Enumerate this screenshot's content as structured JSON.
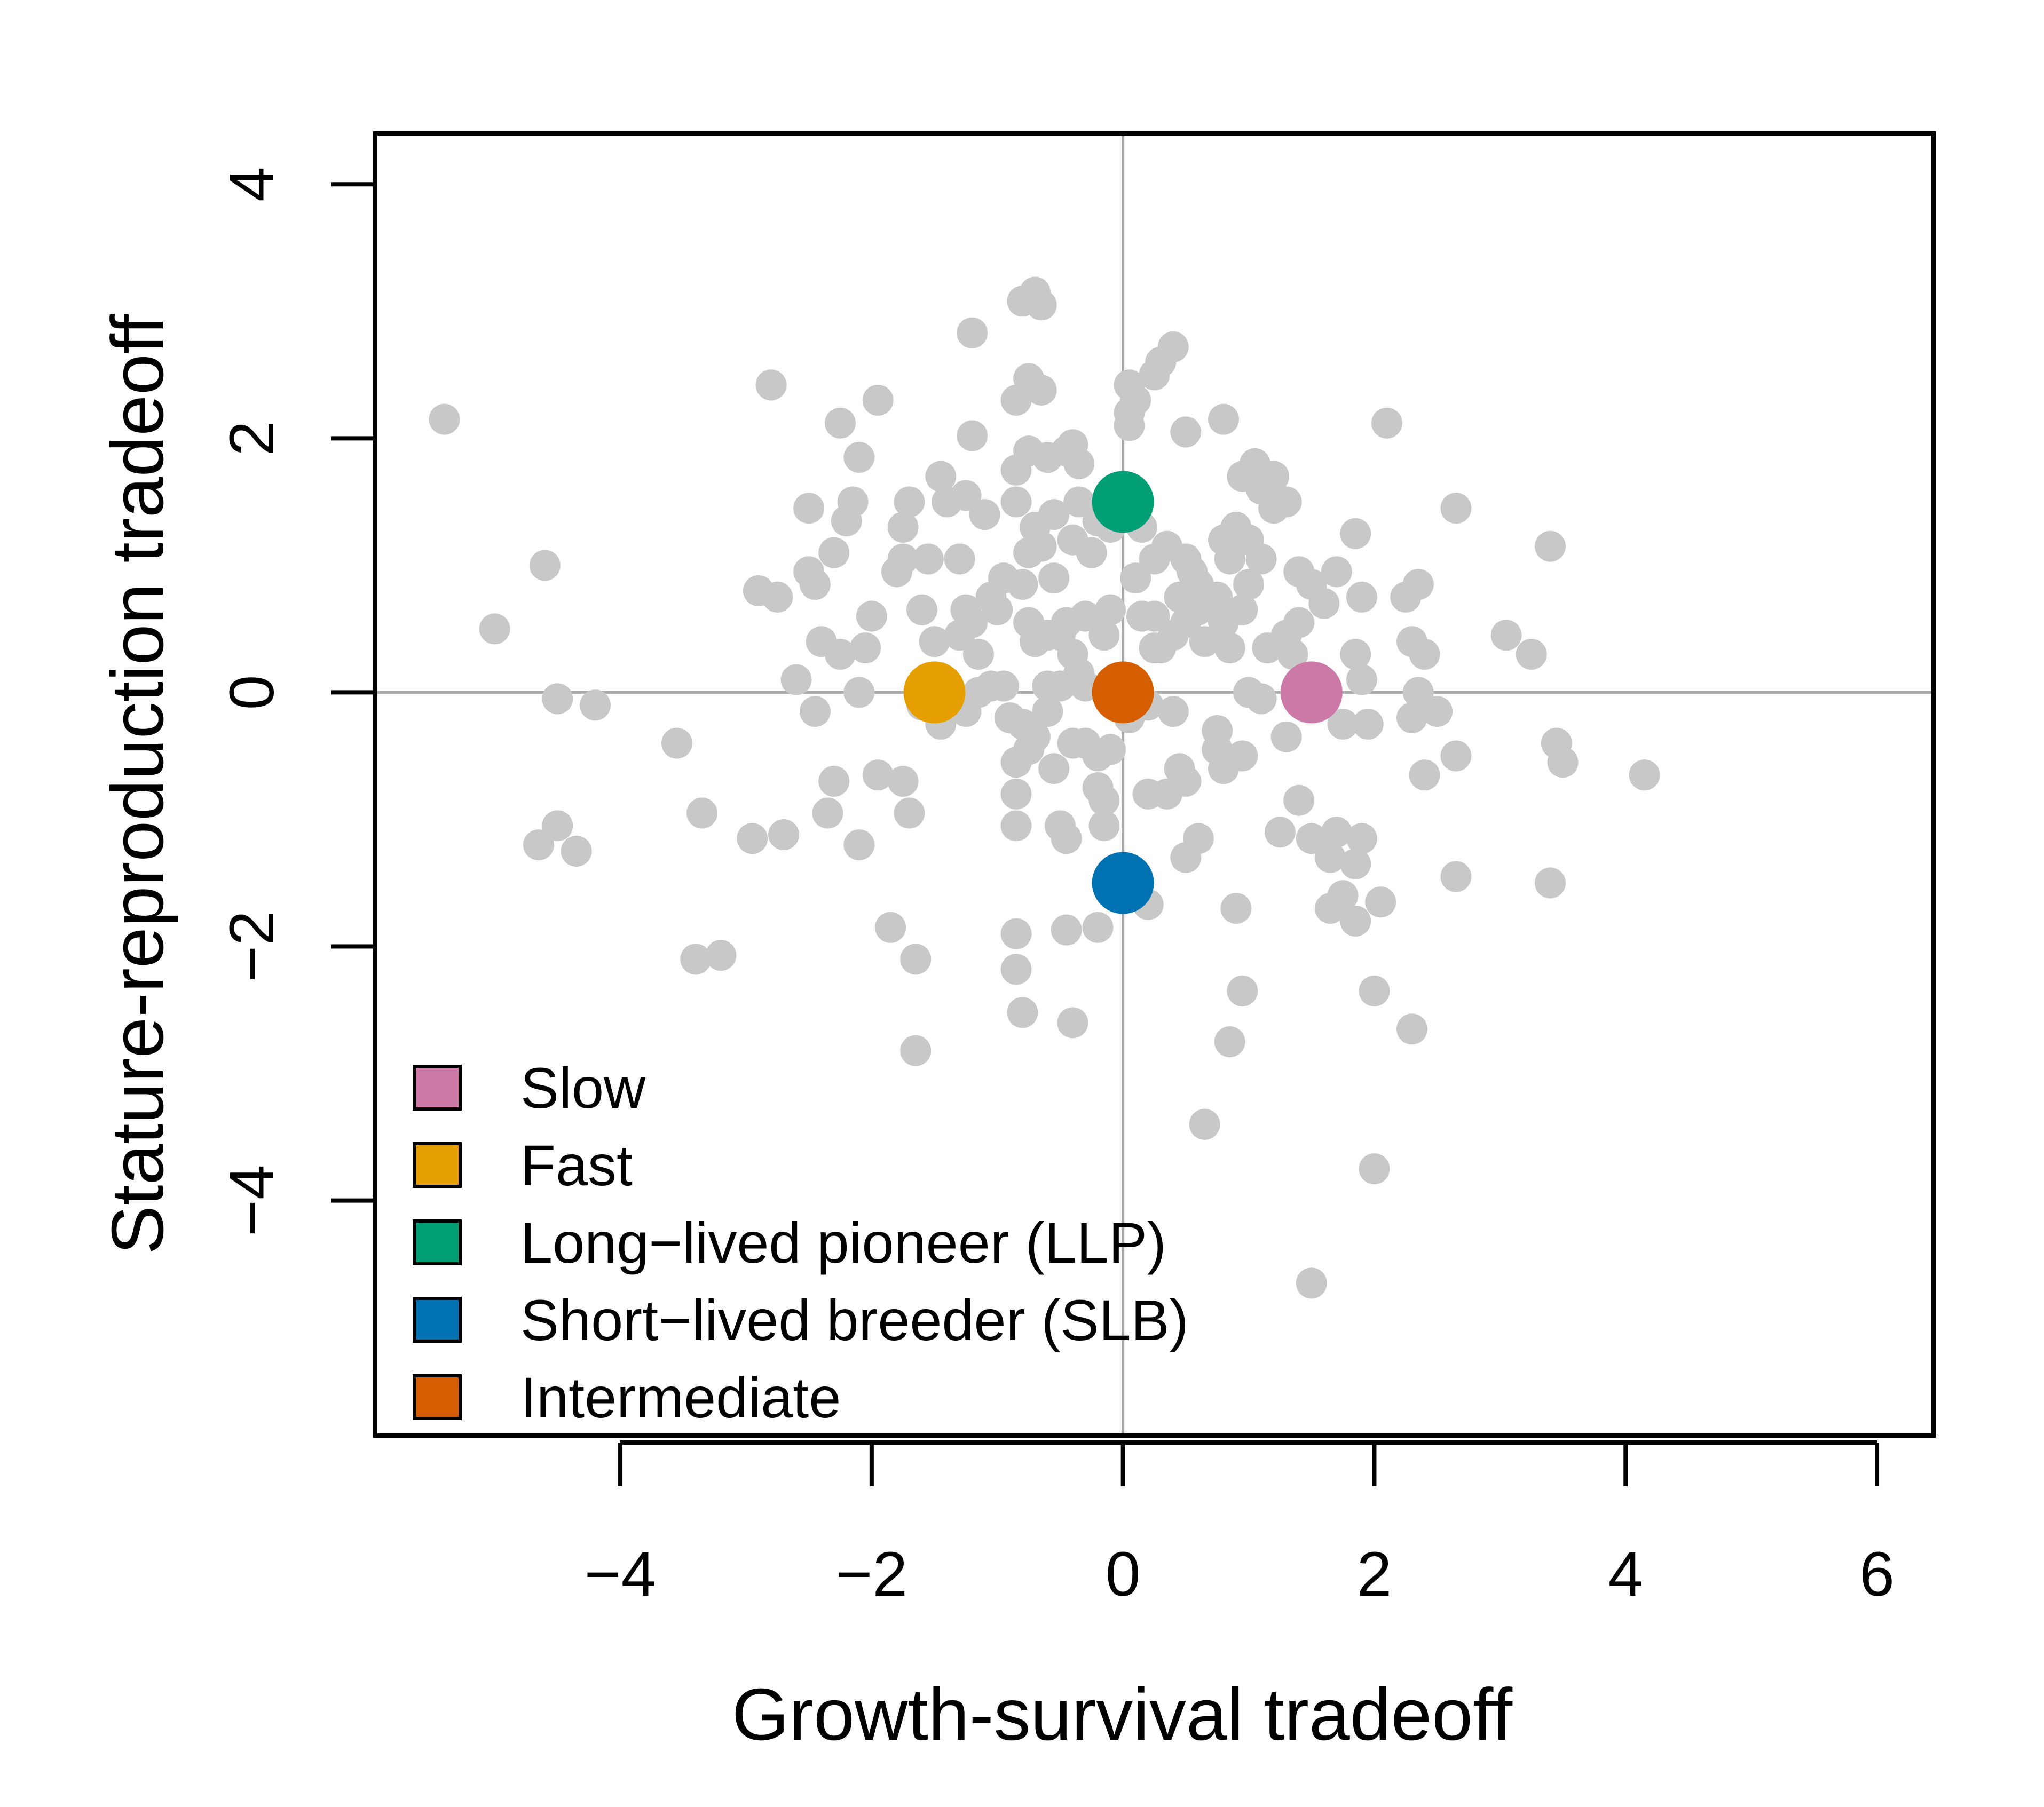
{
  "chart_data": {
    "type": "scatter",
    "title": "",
    "xlabel": "Growth-survival tradeoff",
    "ylabel": "Stature-reproduction tradeoff",
    "xlim": [
      -5.95,
      6.45
    ],
    "ylim": [
      -5.85,
      4.4
    ],
    "xticks": [
      -4,
      -2,
      0,
      2,
      4,
      6
    ],
    "yticks": [
      -4,
      -2,
      0,
      2,
      4
    ],
    "xtick_labels": [
      "−4",
      "−2",
      "0",
      "2",
      "4",
      "6"
    ],
    "ytick_labels": [
      "−4",
      "−2",
      "0",
      "2",
      "4"
    ],
    "reference_lines": {
      "x": 0,
      "y": 0
    },
    "colors": {
      "background_points": "#c8c8c8",
      "reference_lines": "#aaaaaa",
      "Slow": "#cc79a7",
      "Fast": "#e69f00",
      "Long-lived pioneer (LLP)": "#009e73",
      "Short-lived breeder (SLB)": "#0072b2",
      "Intermediate": "#d55e00"
    },
    "legend": {
      "position": "bottom-left",
      "entries": [
        {
          "label": "Slow",
          "color": "#cc79a7"
        },
        {
          "label": "Fast",
          "color": "#e69f00"
        },
        {
          "label": "Long−lived pioneer (LLP)",
          "color": "#009e73"
        },
        {
          "label": "Short−lived breeder (SLB)",
          "color": "#0072b2"
        },
        {
          "label": "Intermediate",
          "color": "#d55e00"
        }
      ]
    },
    "highlight_points": [
      {
        "name": "Slow",
        "x": 1.5,
        "y": 0.0,
        "color": "#cc79a7"
      },
      {
        "name": "Fast",
        "x": -1.5,
        "y": 0.0,
        "color": "#e69f00"
      },
      {
        "name": "Long-lived pioneer (LLP)",
        "x": 0.0,
        "y": 1.5,
        "color": "#009e73"
      },
      {
        "name": "Short-lived breeder (SLB)",
        "x": 0.0,
        "y": -1.5,
        "color": "#0072b2"
      },
      {
        "name": "Intermediate",
        "x": 0.0,
        "y": 0.0,
        "color": "#d55e00"
      }
    ],
    "species_points": [
      [
        -5.4,
        2.15
      ],
      [
        -5.0,
        0.5
      ],
      [
        -4.6,
        1.0
      ],
      [
        -4.5,
        -0.05
      ],
      [
        -4.2,
        -0.1
      ],
      [
        -4.5,
        -1.05
      ],
      [
        -4.65,
        -1.2
      ],
      [
        -4.35,
        -1.25
      ],
      [
        -3.55,
        -0.4
      ],
      [
        -3.4,
        -2.1
      ],
      [
        -3.2,
        -2.07
      ],
      [
        -3.35,
        -0.95
      ],
      [
        -2.9,
        0.8
      ],
      [
        -2.75,
        0.75
      ],
      [
        -2.8,
        2.42
      ],
      [
        -2.5,
        1.45
      ],
      [
        -2.5,
        0.95
      ],
      [
        -2.45,
        0.85
      ],
      [
        -2.6,
        0.1
      ],
      [
        -2.45,
        -0.15
      ],
      [
        -2.4,
        0.4
      ],
      [
        -2.25,
        0.3
      ],
      [
        -2.2,
        1.35
      ],
      [
        -2.3,
        1.1
      ],
      [
        -2.25,
        2.12
      ],
      [
        -2.15,
        1.5
      ],
      [
        -2.1,
        1.85
      ],
      [
        -2.05,
        0.35
      ],
      [
        -2.1,
        0.0
      ],
      [
        -2.0,
        0.6
      ],
      [
        -1.95,
        2.3
      ],
      [
        -2.3,
        -0.7
      ],
      [
        -2.35,
        -0.95
      ],
      [
        -2.1,
        -1.2
      ],
      [
        -1.95,
        -0.65
      ],
      [
        -1.75,
        -0.7
      ],
      [
        -1.7,
        -0.95
      ],
      [
        -1.85,
        -1.85
      ],
      [
        -1.65,
        -2.1
      ],
      [
        -1.65,
        -2.82
      ],
      [
        -2.95,
        -1.15
      ],
      [
        -2.7,
        -1.12
      ],
      [
        -1.75,
        1.3
      ],
      [
        -1.7,
        1.5
      ],
      [
        -1.75,
        1.05
      ],
      [
        -1.8,
        0.95
      ],
      [
        -1.55,
        1.05
      ],
      [
        -1.4,
        1.5
      ],
      [
        -1.45,
        1.7
      ],
      [
        -1.6,
        0.65
      ],
      [
        -1.5,
        0.4
      ],
      [
        -1.3,
        0.45
      ],
      [
        -1.25,
        0.65
      ],
      [
        -1.2,
        0.55
      ],
      [
        -1.15,
        0.3
      ],
      [
        -1.3,
        1.05
      ],
      [
        -1.25,
        1.55
      ],
      [
        -1.2,
        2.02
      ],
      [
        -1.2,
        2.83
      ],
      [
        -1.1,
        1.4
      ],
      [
        -1.05,
        0.75
      ],
      [
        -1.0,
        0.65
      ],
      [
        -0.95,
        0.05
      ],
      [
        -1.05,
        0.05
      ],
      [
        -1.15,
        0.0
      ],
      [
        -1.25,
        -0.15
      ],
      [
        -1.45,
        -0.25
      ],
      [
        -1.6,
        -0.1
      ],
      [
        -0.9,
        -0.2
      ],
      [
        -0.85,
        1.75
      ],
      [
        -0.85,
        2.3
      ],
      [
        -0.8,
        3.08
      ],
      [
        -0.7,
        3.15
      ],
      [
        -0.65,
        3.05
      ],
      [
        -0.75,
        2.47
      ],
      [
        -0.65,
        2.38
      ],
      [
        -0.75,
        1.9
      ],
      [
        -0.6,
        1.85
      ],
      [
        -0.85,
        1.5
      ],
      [
        -0.7,
        1.3
      ],
      [
        -0.75,
        1.1
      ],
      [
        -0.8,
        0.85
      ],
      [
        -0.65,
        1.15
      ],
      [
        -0.55,
        0.9
      ],
      [
        -0.55,
        1.4
      ],
      [
        -0.45,
        1.9
      ],
      [
        -0.4,
        1.95
      ],
      [
        -0.35,
        1.8
      ],
      [
        -0.35,
        1.5
      ],
      [
        -0.4,
        1.2
      ],
      [
        -0.25,
        1.1
      ],
      [
        -0.2,
        1.35
      ],
      [
        -0.1,
        1.3
      ],
      [
        -0.75,
        0.55
      ],
      [
        -0.7,
        0.4
      ],
      [
        -0.6,
        0.45
      ],
      [
        -0.5,
        0.45
      ],
      [
        -0.45,
        0.55
      ],
      [
        -0.4,
        0.3
      ],
      [
        -0.3,
        0.6
      ],
      [
        -0.1,
        0.65
      ],
      [
        -0.15,
        0.45
      ],
      [
        -0.35,
        0.15
      ],
      [
        -0.5,
        0.05
      ],
      [
        -0.6,
        -0.15
      ],
      [
        -0.8,
        -0.25
      ],
      [
        -0.75,
        -0.45
      ],
      [
        -0.85,
        -0.55
      ],
      [
        -0.7,
        -0.35
      ],
      [
        -0.55,
        -0.6
      ],
      [
        -0.4,
        -0.4
      ],
      [
        -0.3,
        -0.4
      ],
      [
        -0.2,
        -0.5
      ],
      [
        -0.1,
        -0.45
      ],
      [
        -0.85,
        -0.8
      ],
      [
        -0.85,
        -1.05
      ],
      [
        -0.5,
        -1.05
      ],
      [
        -0.45,
        -1.15
      ],
      [
        -0.2,
        -0.75
      ],
      [
        -0.15,
        -0.85
      ],
      [
        -0.15,
        -1.05
      ],
      [
        -0.85,
        -1.9
      ],
      [
        -0.85,
        -2.18
      ],
      [
        -0.8,
        -2.52
      ],
      [
        -0.45,
        -1.87
      ],
      [
        -0.2,
        -1.85
      ],
      [
        -0.4,
        -2.6
      ],
      [
        0.05,
        2.1
      ],
      [
        0.05,
        2.2
      ],
      [
        0.1,
        2.3
      ],
      [
        0.05,
        2.42
      ],
      [
        0.25,
        2.5
      ],
      [
        0.3,
        2.6
      ],
      [
        0.4,
        2.72
      ],
      [
        0.15,
        1.3
      ],
      [
        0.25,
        1.05
      ],
      [
        0.35,
        1.15
      ],
      [
        0.1,
        0.9
      ],
      [
        0.15,
        0.6
      ],
      [
        0.25,
        0.6
      ],
      [
        0.3,
        0.35
      ],
      [
        0.4,
        0.45
      ],
      [
        0.5,
        0.55
      ],
      [
        0.45,
        0.75
      ],
      [
        0.55,
        0.95
      ],
      [
        0.5,
        1.05
      ],
      [
        0.6,
        0.85
      ],
      [
        0.5,
        2.05
      ],
      [
        0.6,
        0.65
      ],
      [
        0.65,
        0.4
      ],
      [
        0.75,
        0.75
      ],
      [
        0.8,
        0.55
      ],
      [
        0.85,
        0.35
      ],
      [
        0.95,
        0.65
      ],
      [
        1.0,
        0.85
      ],
      [
        0.85,
        1.05
      ],
      [
        0.8,
        1.2
      ],
      [
        0.9,
        1.3
      ],
      [
        1.0,
        1.2
      ],
      [
        1.1,
        1.05
      ],
      [
        0.95,
        1.7
      ],
      [
        1.05,
        1.8
      ],
      [
        1.1,
        1.6
      ],
      [
        1.2,
        1.7
      ],
      [
        1.3,
        1.5
      ],
      [
        1.2,
        1.45
      ],
      [
        0.8,
        2.15
      ],
      [
        1.15,
        0.35
      ],
      [
        1.3,
        0.45
      ],
      [
        1.4,
        0.95
      ],
      [
        1.5,
        0.85
      ],
      [
        1.4,
        0.55
      ],
      [
        1.35,
        0.3
      ],
      [
        1.6,
        0.7
      ],
      [
        1.7,
        0.95
      ],
      [
        1.85,
        1.25
      ],
      [
        1.9,
        0.75
      ],
      [
        1.85,
        0.3
      ],
      [
        1.9,
        0.1
      ],
      [
        2.1,
        2.12
      ],
      [
        2.25,
        0.75
      ],
      [
        2.3,
        0.4
      ],
      [
        2.35,
        0.85
      ],
      [
        2.4,
        0.3
      ],
      [
        2.35,
        0.0
      ],
      [
        2.3,
        -0.2
      ],
      [
        2.5,
        -0.15
      ],
      [
        2.65,
        1.45
      ],
      [
        2.65,
        -0.5
      ],
      [
        2.4,
        -0.65
      ],
      [
        3.05,
        0.45
      ],
      [
        3.25,
        0.3
      ],
      [
        3.4,
        1.15
      ],
      [
        3.45,
        -0.4
      ],
      [
        3.5,
        -0.55
      ],
      [
        4.15,
        -0.65
      ],
      [
        3.4,
        -1.5
      ],
      [
        2.65,
        -1.45
      ],
      [
        1.75,
        -0.25
      ],
      [
        1.95,
        -0.25
      ],
      [
        1.0,
        0.0
      ],
      [
        1.1,
        -0.05
      ],
      [
        1.3,
        -0.35
      ],
      [
        1.4,
        -0.85
      ],
      [
        0.95,
        -0.5
      ],
      [
        0.8,
        -0.6
      ],
      [
        0.75,
        -0.45
      ],
      [
        0.75,
        -0.3
      ],
      [
        0.45,
        -0.6
      ],
      [
        0.5,
        -0.7
      ],
      [
        0.35,
        -0.8
      ],
      [
        0.2,
        -0.8
      ],
      [
        0.4,
        -0.15
      ],
      [
        0.2,
        -0.1
      ],
      [
        0.05,
        -0.2
      ],
      [
        1.25,
        -1.1
      ],
      [
        1.5,
        -1.15
      ],
      [
        1.7,
        -1.1
      ],
      [
        1.65,
        -1.3
      ],
      [
        1.9,
        -1.15
      ],
      [
        1.85,
        -1.35
      ],
      [
        1.75,
        -1.6
      ],
      [
        1.65,
        -1.7
      ],
      [
        1.85,
        -1.8
      ],
      [
        2.05,
        -1.65
      ],
      [
        0.6,
        -1.15
      ],
      [
        0.5,
        -1.3
      ],
      [
        0.9,
        -1.7
      ],
      [
        0.2,
        -1.67
      ],
      [
        0.95,
        -2.35
      ],
      [
        0.85,
        -2.75
      ],
      [
        0.65,
        -3.4
      ],
      [
        2.0,
        -2.35
      ],
      [
        2.3,
        -2.65
      ],
      [
        2.0,
        -3.75
      ],
      [
        1.5,
        -4.65
      ],
      [
        -0.95,
        0.9
      ],
      [
        -0.6,
        0.05
      ],
      [
        -0.3,
        0.05
      ],
      [
        0.25,
        0.35
      ]
    ]
  }
}
